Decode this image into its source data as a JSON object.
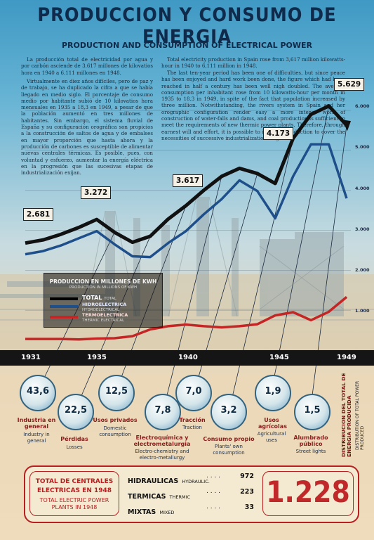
{
  "title": "PRODUCCION Y CONSUMO DE ENERGIA",
  "subtitle": "PRODUCTION AND CONSUMPTION OF ELECTRICAL POWER",
  "text_es": [
    "La producción total de electricidad por agua y por carbón asciende de 3.617 millones de kilovatios hora en 1940 a 6.111 millones en 1948.",
    "Virtualmente en diez años difíciles, pero de paz y de trabajo, se ha duplicado la cifra a que se había llegado en medio siglo. El porcentaje de consumo medio por habitante subió de 10 kilovatios hora mensuales en 1935 a 18,3 en 1949, a pesar de que la población aumentó en tres millones de habitantes. Sin embargo, el sistema fluvial de España y su configuración orográfica son propicios a la construcción de saltos de agua y de embalses en mayor proporción que hasta ahora y la producción de carbones es susceptible de alimentar nuevas centrales térmicas. Es posible, pues, con voluntad y esfuerzo, aumentar la energía eléctrica en la progresión que las sucesivas etapas de industrialización exijan."
  ],
  "text_en": [
    "Total electricity production in Spain rose from 3,617 million kilowatts-hour in 1940 to 6,111 million in 1948.",
    "The last ten-year period has been one of difficulties, but since peace has been enjoyed and hard work been done, the figure which had been reached in half a century has been well nigh doubled. The average consumption per inhabitant rose from 10 kilowatts-hour per month in 1935 to 18.3 in 1949, in spite of the fact that population increased by three million. Notwithstanding, the rivers system in Spain and her orographic configuration render easy a more intense work of construction of water-falls and dams, and coal production is sufficient to meet the requirements of new thermic power plants. Therefore, through earnest will and effort, it is possible to increase production to cover the necessities of successive industrialization stages."
  ],
  "chart_data": {
    "type": "line",
    "title": "PRODUCCION EN MILLONES DE KWH",
    "subtitle": "PRODUCTION IN MILLIONS OF KWH",
    "x": [
      1931,
      1932,
      1933,
      1934,
      1935,
      1936,
      1937,
      1938,
      1939,
      1940,
      1941,
      1942,
      1943,
      1944,
      1945,
      1946,
      1947,
      1948,
      1949
    ],
    "xticks": [
      "1931",
      "1935",
      "1940",
      "1945",
      "1949"
    ],
    "yticks": [
      "1.000",
      "2.000",
      "3.000",
      "4.000",
      "5.000",
      "6.000"
    ],
    "ylim": [
      0,
      6300
    ],
    "series": [
      {
        "name": "TOTAL",
        "name_en": "TOTAL",
        "color": "#111111",
        "values": [
          2681,
          2760,
          2900,
          3070,
          3272,
          2950,
          2700,
          2850,
          3280,
          3617,
          4000,
          4350,
          4550,
          4420,
          4173,
          5300,
          5900,
          6111,
          5629
        ]
      },
      {
        "name": "HIDROELECTRICA",
        "name_en": "HYDROELECTRICAL",
        "color": "#1f4f8a",
        "values": [
          2400,
          2480,
          2620,
          2800,
          2980,
          2650,
          2350,
          2330,
          2680,
          2980,
          3400,
          3780,
          4250,
          3980,
          3300,
          4350,
          5150,
          5150,
          3800
        ]
      },
      {
        "name": "TERMOELECTRICA",
        "name_en": "THERMIC ELECTRICAL",
        "color": "#c42626",
        "values": [
          280,
          280,
          280,
          270,
          290,
          300,
          350,
          520,
          600,
          640,
          600,
          570,
          600,
          650,
          870,
          950,
          750,
          960,
          1330
        ]
      }
    ],
    "value_labels": [
      {
        "year": 1931,
        "text": "2.681"
      },
      {
        "year": 1935,
        "text": "3.272"
      },
      {
        "year": 1940,
        "text": "3.617"
      },
      {
        "year": 1945,
        "text": "4.173"
      },
      {
        "year": 1949,
        "text": "5.629"
      }
    ]
  },
  "legend": {
    "title": "PRODUCCION EN MILLONES DE KWH",
    "title_en": "PRODUCTION IN MILLIONS OF KWH"
  },
  "distribution": {
    "side_es": "DISTRIBUCION DEL TOTAL DE ENERGIA PRODUCIDA",
    "side_en": "DISTRIBUTION OF TOTAL POWER PRODUCED",
    "items": [
      {
        "value": "43,6",
        "name": "Industria en general",
        "name_en": "Industry in general"
      },
      {
        "value": "22,5",
        "name": "Pérdidas",
        "name_en": "Losses"
      },
      {
        "value": "12,5",
        "name": "Usos privados",
        "name_en": "Domestic consumption"
      },
      {
        "value": "7,8",
        "name": "Electroquímica y electrometalurgia",
        "name_en": "Electro-chemistry and electro-metallurgy"
      },
      {
        "value": "7,0",
        "name": "Tracción",
        "name_en": "Traction"
      },
      {
        "value": "3,2",
        "name": "Consumo propio",
        "name_en": "Plants' own consumption"
      },
      {
        "value": "1,9",
        "name": "Usos agrícolas",
        "name_en": "Agricultural uses"
      },
      {
        "value": "1,5",
        "name": "Alumbrado público",
        "name_en": "Street lights"
      }
    ]
  },
  "centrales": {
    "label_es": "TOTAL DE CENTRALES ELECTRICAS EN 1948",
    "label_en": "TOTAL ELECTRIC POWER PLANTS IN 1948",
    "rows": [
      {
        "name": "HIDRAULICAS",
        "name_en": "HYDRAULIC.",
        "value": "972"
      },
      {
        "name": "TERMICAS",
        "name_en": "THERMIC",
        "value": "223"
      },
      {
        "name": "MIXTAS",
        "name_en": "MIXED",
        "value": "33"
      }
    ],
    "total": "1.228"
  }
}
